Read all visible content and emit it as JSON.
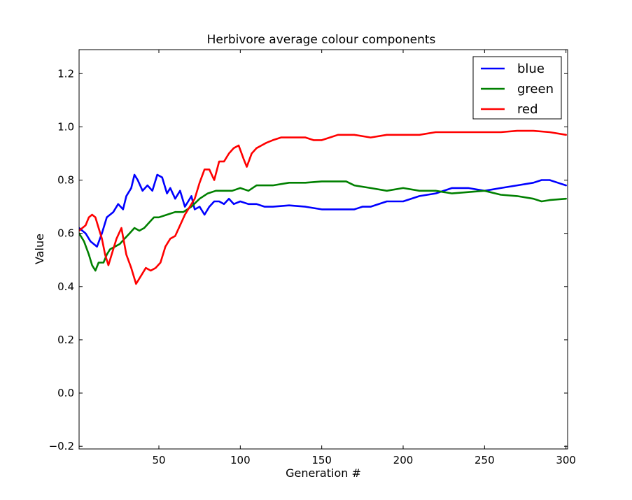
{
  "chart_data": {
    "type": "line",
    "title": "Herbivore average colour components",
    "xlabel": "Generation #",
    "ylabel": "Value",
    "xlim": [
      1,
      301
    ],
    "ylim": [
      -0.21,
      1.29
    ],
    "xticks": [
      50,
      100,
      150,
      200,
      250,
      300
    ],
    "yticks": [
      -0.2,
      0.0,
      0.2,
      0.4,
      0.6,
      0.8,
      1.0,
      1.2
    ],
    "xtick_labels": [
      "50",
      "100",
      "150",
      "200",
      "250",
      "300"
    ],
    "ytick_labels": [
      "−0.2",
      "0.0",
      "0.2",
      "0.4",
      "0.6",
      "0.8",
      "1.0",
      "1.2"
    ],
    "grid": false,
    "legend_position": "top-right",
    "series": [
      {
        "name": "blue",
        "color": "#0000ff",
        "points": [
          [
            1,
            0.62
          ],
          [
            5,
            0.6
          ],
          [
            8,
            0.57
          ],
          [
            12,
            0.55
          ],
          [
            15,
            0.6
          ],
          [
            18,
            0.66
          ],
          [
            22,
            0.68
          ],
          [
            25,
            0.71
          ],
          [
            28,
            0.69
          ],
          [
            30,
            0.74
          ],
          [
            33,
            0.77
          ],
          [
            35,
            0.82
          ],
          [
            37,
            0.8
          ],
          [
            40,
            0.76
          ],
          [
            43,
            0.78
          ],
          [
            46,
            0.76
          ],
          [
            49,
            0.82
          ],
          [
            52,
            0.81
          ],
          [
            55,
            0.75
          ],
          [
            57,
            0.77
          ],
          [
            60,
            0.73
          ],
          [
            63,
            0.76
          ],
          [
            66,
            0.7
          ],
          [
            68,
            0.72
          ],
          [
            70,
            0.74
          ],
          [
            72,
            0.69
          ],
          [
            75,
            0.7
          ],
          [
            78,
            0.67
          ],
          [
            81,
            0.7
          ],
          [
            84,
            0.72
          ],
          [
            87,
            0.72
          ],
          [
            90,
            0.71
          ],
          [
            93,
            0.73
          ],
          [
            96,
            0.71
          ],
          [
            100,
            0.72
          ],
          [
            105,
            0.71
          ],
          [
            110,
            0.71
          ],
          [
            115,
            0.7
          ],
          [
            120,
            0.7
          ],
          [
            130,
            0.705
          ],
          [
            140,
            0.7
          ],
          [
            150,
            0.69
          ],
          [
            160,
            0.69
          ],
          [
            170,
            0.69
          ],
          [
            175,
            0.7
          ],
          [
            180,
            0.7
          ],
          [
            190,
            0.72
          ],
          [
            200,
            0.72
          ],
          [
            210,
            0.74
          ],
          [
            220,
            0.75
          ],
          [
            230,
            0.77
          ],
          [
            240,
            0.77
          ],
          [
            250,
            0.76
          ],
          [
            260,
            0.77
          ],
          [
            270,
            0.78
          ],
          [
            280,
            0.79
          ],
          [
            285,
            0.8
          ],
          [
            290,
            0.8
          ],
          [
            295,
            0.79
          ],
          [
            300,
            0.78
          ]
        ]
      },
      {
        "name": "green",
        "color": "#008000",
        "points": [
          [
            1,
            0.6
          ],
          [
            4,
            0.57
          ],
          [
            7,
            0.52
          ],
          [
            9,
            0.48
          ],
          [
            11,
            0.46
          ],
          [
            13,
            0.49
          ],
          [
            16,
            0.49
          ],
          [
            18,
            0.52
          ],
          [
            20,
            0.54
          ],
          [
            23,
            0.55
          ],
          [
            26,
            0.56
          ],
          [
            29,
            0.58
          ],
          [
            32,
            0.6
          ],
          [
            35,
            0.62
          ],
          [
            38,
            0.61
          ],
          [
            41,
            0.62
          ],
          [
            44,
            0.64
          ],
          [
            47,
            0.66
          ],
          [
            50,
            0.66
          ],
          [
            55,
            0.67
          ],
          [
            60,
            0.68
          ],
          [
            65,
            0.68
          ],
          [
            70,
            0.7
          ],
          [
            75,
            0.73
          ],
          [
            80,
            0.75
          ],
          [
            85,
            0.76
          ],
          [
            90,
            0.76
          ],
          [
            95,
            0.76
          ],
          [
            100,
            0.77
          ],
          [
            105,
            0.76
          ],
          [
            110,
            0.78
          ],
          [
            115,
            0.78
          ],
          [
            120,
            0.78
          ],
          [
            130,
            0.79
          ],
          [
            140,
            0.79
          ],
          [
            150,
            0.795
          ],
          [
            160,
            0.795
          ],
          [
            165,
            0.795
          ],
          [
            170,
            0.78
          ],
          [
            180,
            0.77
          ],
          [
            190,
            0.76
          ],
          [
            200,
            0.77
          ],
          [
            210,
            0.76
          ],
          [
            220,
            0.76
          ],
          [
            230,
            0.75
          ],
          [
            240,
            0.755
          ],
          [
            250,
            0.76
          ],
          [
            260,
            0.745
          ],
          [
            270,
            0.74
          ],
          [
            280,
            0.73
          ],
          [
            285,
            0.72
          ],
          [
            290,
            0.725
          ],
          [
            300,
            0.73
          ]
        ]
      },
      {
        "name": "red",
        "color": "#ff0000",
        "points": [
          [
            1,
            0.61
          ],
          [
            3,
            0.62
          ],
          [
            5,
            0.63
          ],
          [
            7,
            0.66
          ],
          [
            9,
            0.67
          ],
          [
            11,
            0.66
          ],
          [
            13,
            0.62
          ],
          [
            15,
            0.58
          ],
          [
            17,
            0.52
          ],
          [
            19,
            0.48
          ],
          [
            21,
            0.52
          ],
          [
            24,
            0.58
          ],
          [
            27,
            0.62
          ],
          [
            30,
            0.52
          ],
          [
            33,
            0.47
          ],
          [
            36,
            0.41
          ],
          [
            39,
            0.44
          ],
          [
            42,
            0.47
          ],
          [
            45,
            0.46
          ],
          [
            48,
            0.47
          ],
          [
            51,
            0.49
          ],
          [
            54,
            0.55
          ],
          [
            57,
            0.58
          ],
          [
            60,
            0.59
          ],
          [
            63,
            0.63
          ],
          [
            66,
            0.67
          ],
          [
            69,
            0.7
          ],
          [
            72,
            0.73
          ],
          [
            75,
            0.79
          ],
          [
            78,
            0.84
          ],
          [
            81,
            0.84
          ],
          [
            84,
            0.8
          ],
          [
            87,
            0.87
          ],
          [
            90,
            0.87
          ],
          [
            93,
            0.9
          ],
          [
            96,
            0.92
          ],
          [
            99,
            0.93
          ],
          [
            102,
            0.88
          ],
          [
            104,
            0.85
          ],
          [
            107,
            0.9
          ],
          [
            110,
            0.92
          ],
          [
            113,
            0.93
          ],
          [
            116,
            0.94
          ],
          [
            120,
            0.95
          ],
          [
            125,
            0.96
          ],
          [
            130,
            0.96
          ],
          [
            140,
            0.96
          ],
          [
            145,
            0.95
          ],
          [
            150,
            0.95
          ],
          [
            155,
            0.96
          ],
          [
            160,
            0.97
          ],
          [
            170,
            0.97
          ],
          [
            180,
            0.96
          ],
          [
            190,
            0.97
          ],
          [
            200,
            0.97
          ],
          [
            210,
            0.97
          ],
          [
            220,
            0.98
          ],
          [
            230,
            0.98
          ],
          [
            240,
            0.98
          ],
          [
            250,
            0.98
          ],
          [
            260,
            0.98
          ],
          [
            270,
            0.985
          ],
          [
            280,
            0.985
          ],
          [
            290,
            0.98
          ],
          [
            300,
            0.97
          ]
        ]
      }
    ]
  }
}
